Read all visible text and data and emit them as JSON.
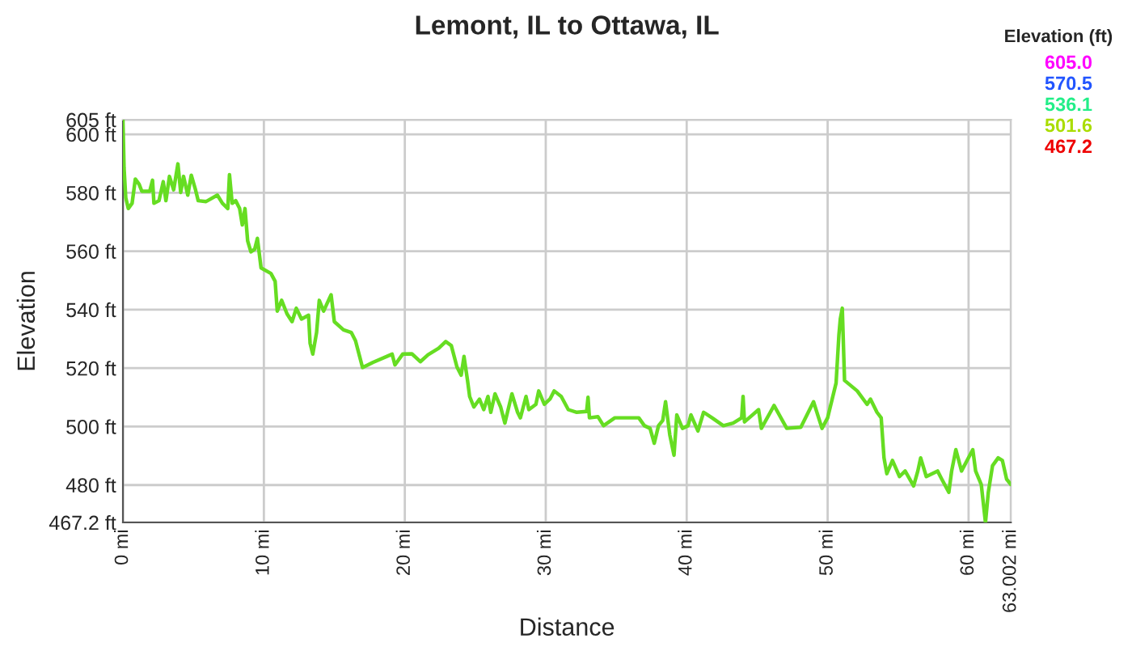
{
  "chart_data": {
    "type": "line",
    "title": "Lemont, IL to Ottawa, IL",
    "xlabel": "Distance",
    "ylabel": "Elevation",
    "legend_title": "Elevation (ft)",
    "xlim": [
      0,
      63.002
    ],
    "ylim": [
      467.2,
      605
    ],
    "xticks": [
      {
        "value": 0,
        "label": "0 mi"
      },
      {
        "value": 10,
        "label": "10 mi"
      },
      {
        "value": 20,
        "label": "20 mi"
      },
      {
        "value": 30,
        "label": "30 mi"
      },
      {
        "value": 40,
        "label": "40 mi"
      },
      {
        "value": 50,
        "label": "50 mi"
      },
      {
        "value": 60,
        "label": "60 mi"
      },
      {
        "value": 63.002,
        "label": "63.002 mi"
      }
    ],
    "yticks": [
      {
        "value": 467.2,
        "label": "467.2 ft"
      },
      {
        "value": 480,
        "label": "480 ft"
      },
      {
        "value": 500,
        "label": "500 ft"
      },
      {
        "value": 520,
        "label": "520 ft"
      },
      {
        "value": 540,
        "label": "540 ft"
      },
      {
        "value": 560,
        "label": "560 ft"
      },
      {
        "value": 580,
        "label": "580 ft"
      },
      {
        "value": 600,
        "label": "600 ft"
      },
      {
        "value": 605,
        "label": "605 ft"
      }
    ],
    "annotations": [
      "605.0",
      "570.5",
      "536.1",
      "501.6",
      "467.2"
    ],
    "colors": [
      "#ff00ff",
      "#2255ff",
      "#22ee88",
      "#aadd00",
      "#ee0000"
    ],
    "grid": true,
    "series": [
      {
        "color": "#66dd22",
        "x": [
          0,
          0.08,
          0.2,
          0.38,
          0.65,
          0.88,
          1.15,
          1.34,
          1.9,
          2.1,
          2.2,
          2.56,
          2.86,
          3.05,
          3.3,
          3.6,
          3.9,
          4.1,
          4.3,
          4.6,
          4.85,
          5.15,
          5.34,
          5.9,
          6.7,
          7.06,
          7.44,
          7.56,
          7.75,
          8.0,
          8.28,
          8.47,
          8.66,
          8.85,
          9.08,
          9.35,
          9.54,
          9.8,
          10.5,
          10.8,
          10.95,
          11.26,
          11.64,
          12.0,
          12.3,
          12.67,
          13.17,
          13.28,
          13.47,
          13.74,
          13.93,
          14.24,
          14.5,
          14.77,
          15.0,
          15.65,
          16.2,
          16.5,
          16.8,
          17.0,
          17.75,
          19.1,
          19.3,
          19.85,
          20.5,
          21.1,
          21.65,
          22.4,
          22.9,
          23.3,
          23.7,
          24.0,
          24.2,
          24.45,
          24.6,
          24.9,
          25.3,
          25.6,
          25.9,
          26.1,
          26.4,
          26.8,
          27.1,
          27.6,
          28.0,
          28.2,
          28.6,
          28.8,
          29.3,
          29.5,
          29.9,
          30.3,
          30.6,
          31.1,
          31.6,
          32.2,
          32.9,
          33.0,
          33.1,
          33.7,
          34.1,
          34.9,
          36.6,
          37.0,
          37.4,
          37.7,
          38.0,
          38.3,
          38.5,
          38.8,
          39.1,
          39.3,
          39.7,
          40.1,
          40.3,
          40.8,
          41.2,
          41.8,
          42.6,
          43.3,
          43.9,
          44.0,
          44.1,
          45.1,
          45.3,
          46.2,
          47.1,
          48.1,
          49.0,
          49.6,
          50.0,
          50.6,
          50.8,
          50.9,
          51.04,
          51.2,
          52.1,
          52.8,
          53.04,
          53.5,
          53.8,
          54.0,
          54.2,
          54.6,
          55.1,
          55.5,
          56.1,
          56.4,
          56.6,
          57.0,
          57.8,
          58.1,
          58.6,
          58.8,
          59.1,
          59.5,
          60.3,
          60.5,
          60.9,
          61.2,
          61.4,
          61.7,
          62.1,
          62.4,
          62.7,
          63.0
        ],
        "values": [
          605,
          588.4,
          578.3,
          574.6,
          576.4,
          584.7,
          582.9,
          580.5,
          580.5,
          584.3,
          576.4,
          577.3,
          583.8,
          577.3,
          585.6,
          581,
          589.9,
          580.1,
          585.6,
          579.2,
          586,
          581,
          577.3,
          577,
          579.2,
          576.4,
          574.6,
          586.2,
          576.4,
          577.3,
          574.6,
          569,
          574.6,
          563.5,
          559.8,
          560.7,
          564.4,
          554.3,
          552.4,
          549.7,
          539.5,
          543.2,
          538.6,
          535.9,
          540.5,
          536.8,
          538.1,
          528.5,
          524.8,
          532.2,
          543.2,
          539.5,
          542.3,
          545.1,
          535.9,
          533.1,
          532.2,
          529.4,
          523.9,
          520.2,
          522.0,
          524.8,
          521.1,
          524.8,
          524.9,
          522.2,
          524.6,
          526.8,
          529.1,
          527.7,
          520.4,
          517.6,
          524.0,
          515.8,
          510.3,
          506.7,
          509.4,
          505.8,
          510.3,
          504.9,
          511.2,
          506.7,
          501.2,
          511.2,
          504.9,
          503.0,
          510.3,
          505.8,
          507.6,
          512.2,
          507.6,
          509.4,
          512.2,
          510.3,
          505.8,
          504.9,
          505.2,
          510.0,
          503.0,
          503.4,
          500.3,
          503.0,
          503.0,
          500.3,
          499.4,
          494.3,
          500.3,
          502.1,
          508.5,
          497.2,
          490.2,
          504.0,
          499.4,
          500.3,
          504.0,
          498.5,
          504.9,
          503.0,
          500.3,
          501.2,
          503.0,
          510.3,
          501.6,
          505.8,
          499.4,
          507.2,
          499.4,
          499.8,
          508.5,
          499.4,
          503.0,
          514.9,
          531.3,
          536.8,
          540.5,
          515.8,
          512.2,
          507.6,
          509.4,
          504.9,
          503.0,
          489.3,
          483.9,
          488.4,
          482.9,
          484.8,
          479.7,
          484.8,
          489.3,
          482.9,
          484.8,
          482.0,
          477.5,
          484.8,
          492.1,
          484.8,
          492.1,
          484.8,
          480.2,
          467.2,
          477.5,
          486.6,
          489.3,
          488.4,
          482.0,
          480.2
        ]
      }
    ]
  }
}
